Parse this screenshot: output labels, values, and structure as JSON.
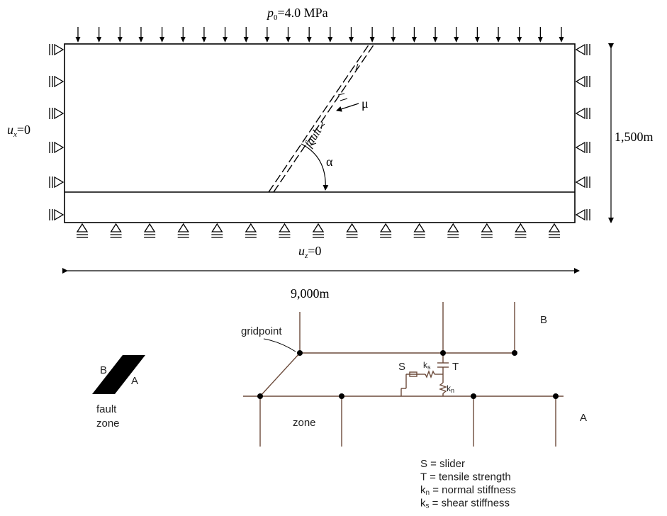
{
  "model": {
    "load_p": "p",
    "load_sub": "0",
    "load_value": "=4.0 MPa",
    "ux_u": "u",
    "ux_sub": "x",
    "ux_value": "=0",
    "uz_u": "u",
    "uz_sub": "z",
    "uz_value": "=0",
    "height": "1,500m",
    "width": "9,000m",
    "fault_label": "fault",
    "friction_symbol": "μ",
    "angle_symbol": "α"
  },
  "interface": {
    "gridpoint_label": "gridpoint",
    "block_B": "B",
    "block_A": "A",
    "slider_S": "S",
    "tensile_T": "T",
    "ks_k": "k",
    "ks_sub": "s",
    "kn_k": "k",
    "kn_sub": "n",
    "zone_label": "zone"
  },
  "fault_zone": {
    "label_B": "B",
    "label_A": "A",
    "caption_line1": "fault",
    "caption_line2": "zone"
  },
  "legend": {
    "items": [
      {
        "sym": "S",
        "sub": "",
        "text": " = slider"
      },
      {
        "sym": "T",
        "sub": "",
        "text": " = tensile strength"
      },
      {
        "sym": "k",
        "sub": "n",
        "text": " = normal stiffness"
      },
      {
        "sym": "k",
        "sub": "s",
        "text": " = shear stiffness"
      }
    ]
  }
}
